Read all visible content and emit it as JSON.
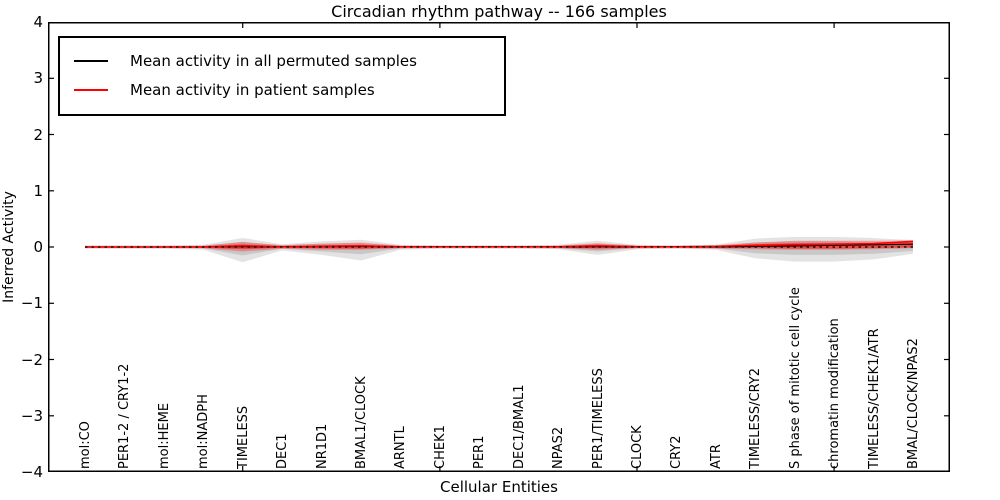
{
  "chart_data": {
    "type": "line",
    "title": "Circadian rhythm pathway -- 166 samples",
    "xlabel": "Cellular Entities",
    "ylabel": "Inferred Activity",
    "ylim": [
      -4,
      4
    ],
    "grid": false,
    "legend_position": "upper-left",
    "ytick_labels": [
      "4",
      "3",
      "2",
      "1",
      "0",
      "−1",
      "−2",
      "−3",
      "−4"
    ],
    "ytick_values": [
      4,
      3,
      2,
      1,
      0,
      -1,
      -2,
      -3,
      -4
    ],
    "x_major_tick_indices": [
      4,
      9,
      14,
      19
    ],
    "categories": [
      "mol:CO",
      "PER1-2 / CRY1-2",
      "mol:HEME",
      "mol:NADPH",
      "TIMELESS",
      "DEC1",
      "NR1D1",
      "BMAL1/CLOCK",
      "ARNTL",
      "CHEK1",
      "PER1",
      "DEC1/BMAL1",
      "NPAS2",
      "PER1/TIMELESS",
      "CLOCK",
      "CRY2",
      "ATR",
      "TIMELESS/CRY2",
      "S phase of mitotic cell cycle",
      "chromatin modification",
      "TIMELESS/CHEK1/ATR",
      "BMAL/CLOCK/NPAS2"
    ],
    "series": [
      {
        "name": "Mean activity in all permuted samples",
        "color": "#000000",
        "values": [
          0,
          0,
          0,
          0,
          0.005,
          0,
          0.005,
          0.01,
          0,
          0,
          0,
          0,
          0,
          0.005,
          0,
          0,
          0,
          0.01,
          0.02,
          0.03,
          0.04,
          0.05
        ]
      },
      {
        "name": "Mean activity in patient samples",
        "color": "#ff0000",
        "values": [
          0,
          0,
          0,
          0,
          0.02,
          0.005,
          0.01,
          0.02,
          0.005,
          0.005,
          0.005,
          0.005,
          0.005,
          0.02,
          0.005,
          0.005,
          0.01,
          0.03,
          0.04,
          0.05,
          0.06,
          0.1
        ]
      }
    ],
    "bands": [
      {
        "name": "permuted-range-band",
        "color": "#808080",
        "alpha": 0.22,
        "upper": [
          0.03,
          0.03,
          0.03,
          0.04,
          0.16,
          0.05,
          0.1,
          0.13,
          0.04,
          0.03,
          0.03,
          0.03,
          0.04,
          0.11,
          0.04,
          0.03,
          0.04,
          0.15,
          0.18,
          0.18,
          0.16,
          0.12
        ],
        "lower": [
          -0.03,
          -0.03,
          -0.03,
          -0.05,
          -0.27,
          -0.06,
          -0.14,
          -0.24,
          -0.05,
          -0.03,
          -0.03,
          -0.03,
          -0.04,
          -0.14,
          -0.04,
          -0.03,
          -0.05,
          -0.2,
          -0.26,
          -0.26,
          -0.22,
          -0.12
        ]
      },
      {
        "name": "permuted-std-band",
        "color": "#808080",
        "alpha": 0.28,
        "upper": [
          0.015,
          0.015,
          0.015,
          0.02,
          0.09,
          0.03,
          0.06,
          0.07,
          0.02,
          0.015,
          0.015,
          0.015,
          0.02,
          0.06,
          0.02,
          0.015,
          0.02,
          0.08,
          0.1,
          0.1,
          0.09,
          0.07
        ],
        "lower": [
          -0.015,
          -0.015,
          -0.015,
          -0.025,
          -0.15,
          -0.03,
          -0.08,
          -0.13,
          -0.025,
          -0.015,
          -0.015,
          -0.015,
          -0.02,
          -0.08,
          -0.02,
          -0.015,
          -0.025,
          -0.11,
          -0.14,
          -0.14,
          -0.12,
          -0.07
        ]
      },
      {
        "name": "patient-range-band",
        "color": "#ff0000",
        "alpha": 0.28,
        "upper": [
          0.02,
          0.02,
          0.02,
          0.025,
          0.09,
          0.03,
          0.06,
          0.08,
          0.025,
          0.02,
          0.02,
          0.02,
          0.025,
          0.07,
          0.025,
          0.02,
          0.03,
          0.08,
          0.11,
          0.11,
          0.11,
          0.12
        ],
        "lower": [
          -0.02,
          -0.02,
          -0.02,
          -0.025,
          -0.08,
          -0.03,
          -0.05,
          -0.05,
          -0.025,
          -0.02,
          -0.02,
          -0.02,
          -0.025,
          -0.05,
          -0.025,
          -0.02,
          -0.03,
          -0.04,
          -0.05,
          -0.05,
          -0.04,
          -0.02
        ]
      },
      {
        "name": "patient-std-band",
        "color": "#ff0000",
        "alpha": 0.5,
        "upper": [
          0.01,
          0.01,
          0.01,
          0.012,
          0.05,
          0.015,
          0.03,
          0.04,
          0.012,
          0.01,
          0.01,
          0.01,
          0.012,
          0.04,
          0.012,
          0.01,
          0.015,
          0.05,
          0.07,
          0.07,
          0.07,
          0.1
        ],
        "lower": [
          -0.01,
          -0.01,
          -0.01,
          -0.012,
          -0.04,
          -0.015,
          -0.025,
          -0.03,
          -0.012,
          -0.01,
          -0.01,
          -0.01,
          -0.012,
          -0.025,
          -0.012,
          -0.01,
          -0.015,
          -0.02,
          -0.03,
          -0.03,
          -0.02,
          -0.01
        ]
      }
    ],
    "zero_line": {
      "y": 0,
      "color": "#000000",
      "style": "dashed"
    }
  }
}
